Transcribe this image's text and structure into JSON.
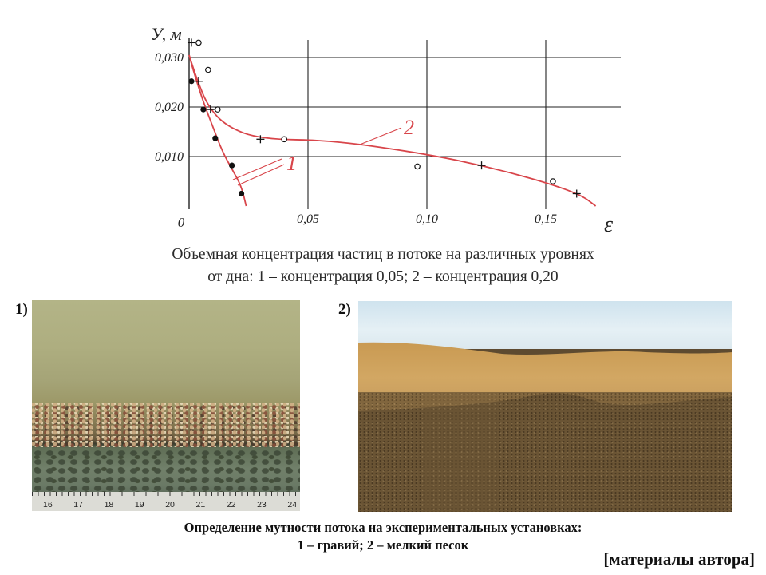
{
  "chart_data": {
    "type": "scatter",
    "title": "",
    "xlabel": "ε",
    "ylabel": "У, м",
    "xlim": [
      0,
      0.18
    ],
    "ylim": [
      0,
      0.033
    ],
    "x_ticks": [
      "0,05",
      "0,10",
      "0,15"
    ],
    "x_tick_values": [
      0.05,
      0.1,
      0.15
    ],
    "y_ticks": [
      "0,010",
      "0,020",
      "0,030"
    ],
    "y_tick_values": [
      0.01,
      0.02,
      0.03
    ],
    "origin_label": "0",
    "grid": true,
    "curve_color": "#d8454a",
    "series": [
      {
        "name": "1",
        "curve": [
          [
            0.0,
            0.0305
          ],
          [
            0.002,
            0.027
          ],
          [
            0.006,
            0.021
          ],
          [
            0.01,
            0.016
          ],
          [
            0.014,
            0.011
          ],
          [
            0.018,
            0.0075
          ],
          [
            0.022,
            0.004
          ],
          [
            0.024,
            0.0
          ]
        ],
        "points_dot": [
          [
            0.001,
            0.0252
          ],
          [
            0.006,
            0.0195
          ],
          [
            0.011,
            0.0137
          ],
          [
            0.018,
            0.0082
          ],
          [
            0.022,
            0.0025
          ]
        ],
        "points_plus": [
          [
            0.001,
            0.033
          ],
          [
            0.004,
            0.0252
          ],
          [
            0.009,
            0.0195
          ]
        ]
      },
      {
        "name": "2",
        "curve": [
          [
            0.0,
            0.0305
          ],
          [
            0.003,
            0.026
          ],
          [
            0.008,
            0.02
          ],
          [
            0.016,
            0.016
          ],
          [
            0.03,
            0.0135
          ],
          [
            0.06,
            0.0133
          ],
          [
            0.1,
            0.0105
          ],
          [
            0.125,
            0.008
          ],
          [
            0.15,
            0.0048
          ],
          [
            0.165,
            0.0022
          ],
          [
            0.171,
            0.0
          ]
        ],
        "points_circle": [
          [
            0.004,
            0.033
          ],
          [
            0.008,
            0.0275
          ],
          [
            0.012,
            0.0195
          ],
          [
            0.04,
            0.0135
          ],
          [
            0.096,
            0.008
          ],
          [
            0.153,
            0.005
          ]
        ],
        "points_plus": [
          [
            0.03,
            0.0135
          ],
          [
            0.123,
            0.0082
          ],
          [
            0.163,
            0.0025
          ]
        ]
      }
    ],
    "curve_labels": [
      "1",
      "2"
    ]
  },
  "captions": {
    "chart_caption_line1": "Объемная концентрация частиц в потоке на различных уровнях",
    "chart_caption_line2": "от дна: 1 – концентрация 0,05; 2 – концентрация 0,20",
    "photos_caption_line1": "Определение мутности потока на экспериментальных установках:",
    "photos_caption_line2": "1 – гравий; 2 – мелкий песок",
    "author_note": "[материалы автора]"
  },
  "photos": {
    "label1": "1)",
    "label2": "2)",
    "ruler_numbers": [
      "16",
      "17",
      "18",
      "19",
      "20",
      "21",
      "22",
      "23",
      "24"
    ]
  }
}
